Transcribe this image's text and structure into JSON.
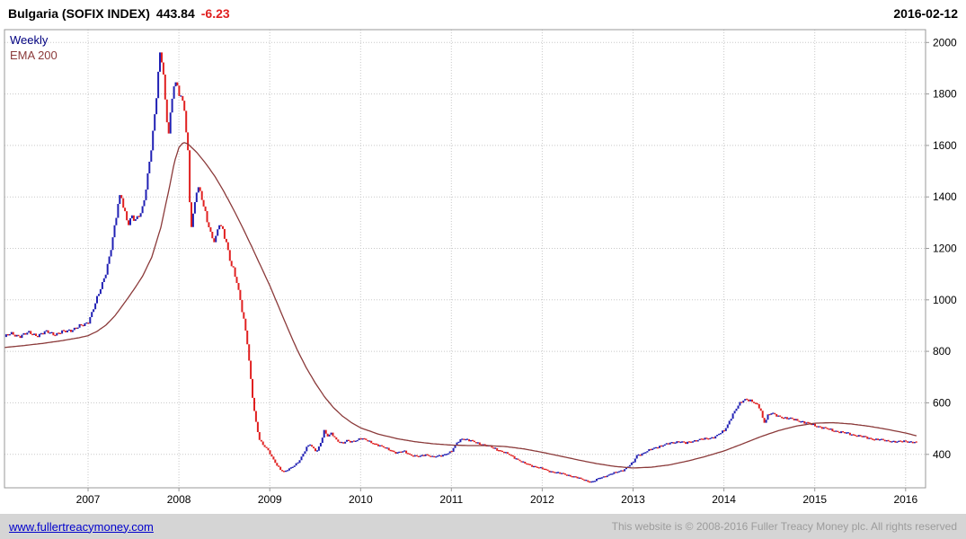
{
  "header": {
    "title": "Bulgaria (SOFIX INDEX)",
    "last_price": "443.84",
    "change": "-6.23",
    "date": "2016-02-12"
  },
  "legend": {
    "series_label": "Weekly",
    "series_color": "#000080",
    "overlay_label": "EMA 200",
    "overlay_color": "#8b3a3a"
  },
  "footer": {
    "link": "www.fullertreacymoney.com",
    "copyright": "This website is © 2008-2016 Fuller Treacy Money plc. All rights reserved"
  },
  "chart_data": {
    "type": "candlestick",
    "title": "Bulgaria (SOFIX INDEX)",
    "frequency": "Weekly",
    "overlay": "EMA 200",
    "last_value": 443.84,
    "change": -6.23,
    "as_of": "2016-02-12",
    "grid": true,
    "legend_position": "top-left",
    "xlim": [
      2006.08,
      2016.22
    ],
    "ylim": [
      270,
      2050
    ],
    "x_ticks": [
      2007,
      2008,
      2009,
      2010,
      2011,
      2012,
      2013,
      2014,
      2015,
      2016
    ],
    "y_ticks": [
      400,
      600,
      800,
      1000,
      1200,
      1400,
      1600,
      1800,
      2000
    ],
    "colors": {
      "up": "#2020b4",
      "down": "#e02020",
      "ema": "#8b3a3a",
      "grid": "#c8c8c8",
      "border": "#999999",
      "axis_text": "#000000"
    },
    "price_points": [
      [
        2006.08,
        856
      ],
      [
        2006.15,
        868
      ],
      [
        2006.25,
        860
      ],
      [
        2006.35,
        872
      ],
      [
        2006.45,
        862
      ],
      [
        2006.55,
        876
      ],
      [
        2006.65,
        866
      ],
      [
        2006.75,
        878
      ],
      [
        2006.85,
        888
      ],
      [
        2006.95,
        902
      ],
      [
        2007.0,
        915
      ],
      [
        2007.05,
        958
      ],
      [
        2007.1,
        1005
      ],
      [
        2007.15,
        1055
      ],
      [
        2007.2,
        1115
      ],
      [
        2007.25,
        1195
      ],
      [
        2007.3,
        1295
      ],
      [
        2007.33,
        1370
      ],
      [
        2007.36,
        1415
      ],
      [
        2007.4,
        1350
      ],
      [
        2007.44,
        1295
      ],
      [
        2007.48,
        1320
      ],
      [
        2007.52,
        1305
      ],
      [
        2007.56,
        1330
      ],
      [
        2007.6,
        1360
      ],
      [
        2007.64,
        1440
      ],
      [
        2007.68,
        1540
      ],
      [
        2007.72,
        1660
      ],
      [
        2007.75,
        1780
      ],
      [
        2007.78,
        1930
      ],
      [
        2007.8,
        1975
      ],
      [
        2007.83,
        1880
      ],
      [
        2007.86,
        1705
      ],
      [
        2007.89,
        1645
      ],
      [
        2007.92,
        1760
      ],
      [
        2007.95,
        1855
      ],
      [
        2007.98,
        1835
      ],
      [
        2008.02,
        1795
      ],
      [
        2008.06,
        1740
      ],
      [
        2008.1,
        1560
      ],
      [
        2008.13,
        1270
      ],
      [
        2008.16,
        1340
      ],
      [
        2008.2,
        1445
      ],
      [
        2008.24,
        1415
      ],
      [
        2008.28,
        1345
      ],
      [
        2008.32,
        1295
      ],
      [
        2008.36,
        1248
      ],
      [
        2008.4,
        1232
      ],
      [
        2008.44,
        1298
      ],
      [
        2008.48,
        1268
      ],
      [
        2008.52,
        1225
      ],
      [
        2008.56,
        1160
      ],
      [
        2008.6,
        1120
      ],
      [
        2008.64,
        1065
      ],
      [
        2008.68,
        985
      ],
      [
        2008.72,
        912
      ],
      [
        2008.76,
        818
      ],
      [
        2008.8,
        655
      ],
      [
        2008.84,
        540
      ],
      [
        2008.88,
        462
      ],
      [
        2008.92,
        438
      ],
      [
        2008.96,
        428
      ],
      [
        2009.0,
        406
      ],
      [
        2009.04,
        378
      ],
      [
        2009.08,
        356
      ],
      [
        2009.12,
        340
      ],
      [
        2009.16,
        332
      ],
      [
        2009.2,
        342
      ],
      [
        2009.24,
        347
      ],
      [
        2009.28,
        358
      ],
      [
        2009.32,
        372
      ],
      [
        2009.36,
        398
      ],
      [
        2009.4,
        424
      ],
      [
        2009.44,
        440
      ],
      [
        2009.48,
        420
      ],
      [
        2009.52,
        412
      ],
      [
        2009.56,
        446
      ],
      [
        2009.6,
        492
      ],
      [
        2009.64,
        468
      ],
      [
        2009.68,
        482
      ],
      [
        2009.72,
        462
      ],
      [
        2009.76,
        450
      ],
      [
        2009.8,
        442
      ],
      [
        2009.85,
        452
      ],
      [
        2009.9,
        448
      ],
      [
        2009.95,
        455
      ],
      [
        2010.0,
        462
      ],
      [
        2010.08,
        452
      ],
      [
        2010.16,
        440
      ],
      [
        2010.24,
        428
      ],
      [
        2010.32,
        418
      ],
      [
        2010.4,
        404
      ],
      [
        2010.48,
        412
      ],
      [
        2010.56,
        396
      ],
      [
        2010.64,
        390
      ],
      [
        2010.72,
        400
      ],
      [
        2010.8,
        388
      ],
      [
        2010.9,
        396
      ],
      [
        2011.0,
        410
      ],
      [
        2011.06,
        445
      ],
      [
        2011.12,
        462
      ],
      [
        2011.18,
        455
      ],
      [
        2011.25,
        448
      ],
      [
        2011.32,
        440
      ],
      [
        2011.4,
        432
      ],
      [
        2011.48,
        422
      ],
      [
        2011.56,
        410
      ],
      [
        2011.64,
        398
      ],
      [
        2011.72,
        382
      ],
      [
        2011.8,
        365
      ],
      [
        2011.9,
        354
      ],
      [
        2012.0,
        344
      ],
      [
        2012.08,
        334
      ],
      [
        2012.16,
        328
      ],
      [
        2012.25,
        322
      ],
      [
        2012.33,
        314
      ],
      [
        2012.42,
        305
      ],
      [
        2012.5,
        296
      ],
      [
        2012.55,
        291
      ],
      [
        2012.62,
        306
      ],
      [
        2012.7,
        316
      ],
      [
        2012.8,
        328
      ],
      [
        2012.9,
        340
      ],
      [
        2013.0,
        368
      ],
      [
        2013.04,
        396
      ],
      [
        2013.1,
        402
      ],
      [
        2013.18,
        416
      ],
      [
        2013.26,
        428
      ],
      [
        2013.34,
        436
      ],
      [
        2013.42,
        444
      ],
      [
        2013.5,
        450
      ],
      [
        2013.58,
        443
      ],
      [
        2013.66,
        452
      ],
      [
        2013.74,
        457
      ],
      [
        2013.82,
        461
      ],
      [
        2013.9,
        468
      ],
      [
        2014.0,
        490
      ],
      [
        2014.04,
        515
      ],
      [
        2014.08,
        545
      ],
      [
        2014.12,
        568
      ],
      [
        2014.16,
        590
      ],
      [
        2014.2,
        606
      ],
      [
        2014.24,
        616
      ],
      [
        2014.28,
        612
      ],
      [
        2014.32,
        602
      ],
      [
        2014.36,
        592
      ],
      [
        2014.4,
        578
      ],
      [
        2014.44,
        522
      ],
      [
        2014.48,
        550
      ],
      [
        2014.52,
        560
      ],
      [
        2014.56,
        552
      ],
      [
        2014.62,
        546
      ],
      [
        2014.7,
        540
      ],
      [
        2014.78,
        534
      ],
      [
        2014.86,
        527
      ],
      [
        2014.94,
        518
      ],
      [
        2015.02,
        510
      ],
      [
        2015.1,
        502
      ],
      [
        2015.18,
        494
      ],
      [
        2015.26,
        488
      ],
      [
        2015.34,
        482
      ],
      [
        2015.42,
        476
      ],
      [
        2015.5,
        470
      ],
      [
        2015.58,
        464
      ],
      [
        2015.66,
        458
      ],
      [
        2015.74,
        455
      ],
      [
        2015.82,
        452
      ],
      [
        2015.9,
        447
      ],
      [
        2016.0,
        452
      ],
      [
        2016.06,
        447
      ],
      [
        2016.12,
        443.84
      ]
    ],
    "ema_points": [
      [
        2006.08,
        815
      ],
      [
        2006.3,
        823
      ],
      [
        2006.5,
        831
      ],
      [
        2006.7,
        841
      ],
      [
        2006.9,
        853
      ],
      [
        2007.0,
        861
      ],
      [
        2007.1,
        878
      ],
      [
        2007.2,
        903
      ],
      [
        2007.3,
        940
      ],
      [
        2007.4,
        988
      ],
      [
        2007.5,
        1038
      ],
      [
        2007.6,
        1092
      ],
      [
        2007.7,
        1165
      ],
      [
        2007.8,
        1280
      ],
      [
        2007.9,
        1445
      ],
      [
        2007.95,
        1535
      ],
      [
        2008.0,
        1592
      ],
      [
        2008.05,
        1612
      ],
      [
        2008.1,
        1606
      ],
      [
        2008.2,
        1572
      ],
      [
        2008.3,
        1528
      ],
      [
        2008.4,
        1478
      ],
      [
        2008.5,
        1418
      ],
      [
        2008.6,
        1352
      ],
      [
        2008.7,
        1282
      ],
      [
        2008.8,
        1208
      ],
      [
        2008.9,
        1132
      ],
      [
        2009.0,
        1056
      ],
      [
        2009.1,
        972
      ],
      [
        2009.2,
        888
      ],
      [
        2009.3,
        808
      ],
      [
        2009.4,
        738
      ],
      [
        2009.5,
        678
      ],
      [
        2009.6,
        625
      ],
      [
        2009.7,
        582
      ],
      [
        2009.8,
        549
      ],
      [
        2009.9,
        523
      ],
      [
        2010.0,
        503
      ],
      [
        2010.2,
        478
      ],
      [
        2010.4,
        461
      ],
      [
        2010.6,
        449
      ],
      [
        2010.8,
        441
      ],
      [
        2011.0,
        436
      ],
      [
        2011.2,
        434
      ],
      [
        2011.4,
        434
      ],
      [
        2011.6,
        430
      ],
      [
        2011.8,
        421
      ],
      [
        2012.0,
        408
      ],
      [
        2012.2,
        393
      ],
      [
        2012.4,
        378
      ],
      [
        2012.6,
        364
      ],
      [
        2012.8,
        353
      ],
      [
        2013.0,
        347
      ],
      [
        2013.2,
        350
      ],
      [
        2013.4,
        359
      ],
      [
        2013.6,
        374
      ],
      [
        2013.8,
        392
      ],
      [
        2014.0,
        413
      ],
      [
        2014.2,
        440
      ],
      [
        2014.4,
        468
      ],
      [
        2014.6,
        492
      ],
      [
        2014.8,
        510
      ],
      [
        2015.0,
        521
      ],
      [
        2015.2,
        523
      ],
      [
        2015.4,
        518
      ],
      [
        2015.6,
        509
      ],
      [
        2015.8,
        497
      ],
      [
        2016.0,
        483
      ],
      [
        2016.12,
        472
      ]
    ]
  }
}
